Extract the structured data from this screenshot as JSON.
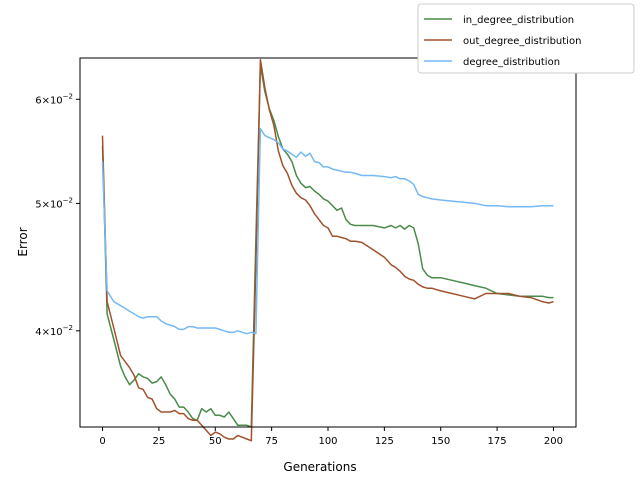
{
  "chart_data": {
    "type": "line",
    "xlabel": "Generations",
    "ylabel": "Error",
    "y_scale": "log",
    "xlim": [
      -10,
      210
    ],
    "ylim": [
      0.0338,
      0.0645
    ],
    "grid": false,
    "legend_placement": "upper-right (outside axes)",
    "x_ticks": [
      0,
      25,
      50,
      75,
      100,
      125,
      150,
      175,
      200
    ],
    "x_tick_labels": [
      "0",
      "25",
      "50",
      "75",
      "100",
      "125",
      "150",
      "175",
      "200"
    ],
    "y_ticks": [
      {
        "value": 0.04,
        "mant": "4",
        "exp": "−2"
      },
      {
        "value": 0.05,
        "mant": "5",
        "exp": "−2"
      },
      {
        "value": 0.06,
        "mant": "6",
        "exp": "−2"
      }
    ],
    "series": [
      {
        "name": "in_degree_distribution",
        "color": "#4a8a4a",
        "x": [
          0,
          2,
          5,
          8,
          10,
          12,
          14,
          16,
          18,
          20,
          22,
          24,
          26,
          28,
          30,
          32,
          34,
          36,
          38,
          40,
          42,
          44,
          46,
          48,
          50,
          52,
          54,
          56,
          58,
          60,
          62,
          64,
          66,
          68,
          70,
          72,
          74,
          76,
          78,
          80,
          82,
          84,
          86,
          88,
          90,
          92,
          94,
          96,
          98,
          100,
          102,
          104,
          106,
          108,
          110,
          112,
          115,
          120,
          125,
          128,
          130,
          132,
          134,
          136,
          138,
          140,
          142,
          144,
          146,
          150,
          155,
          160,
          165,
          170,
          175,
          180,
          185,
          190,
          195,
          198,
          200
        ],
        "values": [
          0.0553,
          0.0412,
          0.0394,
          0.0376,
          0.0369,
          0.0364,
          0.0367,
          0.0371,
          0.0369,
          0.0368,
          0.0365,
          0.0366,
          0.0369,
          0.0364,
          0.0358,
          0.0355,
          0.035,
          0.035,
          0.0347,
          0.0343,
          0.0342,
          0.0349,
          0.0347,
          0.0349,
          0.0345,
          0.0345,
          0.0344,
          0.0347,
          0.0343,
          0.0339,
          0.0339,
          0.0339,
          0.0338,
          0.047,
          0.0637,
          0.0608,
          0.059,
          0.0578,
          0.0562,
          0.055,
          0.0545,
          0.0538,
          0.0525,
          0.0518,
          0.0514,
          0.0515,
          0.0511,
          0.0508,
          0.0504,
          0.0502,
          0.0498,
          0.0494,
          0.0496,
          0.0486,
          0.0482,
          0.0481,
          0.0481,
          0.0481,
          0.0479,
          0.0481,
          0.0479,
          0.0481,
          0.0478,
          0.0481,
          0.0479,
          0.0466,
          0.0446,
          0.0441,
          0.0439,
          0.0439,
          0.0437,
          0.0435,
          0.0433,
          0.0431,
          0.0427,
          0.0426,
          0.0425,
          0.0425,
          0.0425,
          0.0424,
          0.0424
        ]
      },
      {
        "name": "out_degree_distribution",
        "color": "#a0522d",
        "x": [
          0,
          2,
          5,
          8,
          10,
          12,
          14,
          16,
          18,
          20,
          22,
          24,
          26,
          28,
          30,
          32,
          34,
          36,
          38,
          40,
          42,
          44,
          46,
          48,
          50,
          52,
          54,
          56,
          58,
          60,
          62,
          64,
          66,
          68,
          70,
          72,
          74,
          76,
          78,
          80,
          82,
          84,
          86,
          88,
          90,
          92,
          94,
          96,
          98,
          100,
          102,
          104,
          106,
          108,
          110,
          112,
          115,
          120,
          125,
          128,
          130,
          132,
          134,
          136,
          138,
          140,
          142,
          144,
          146,
          150,
          155,
          160,
          165,
          170,
          175,
          180,
          185,
          190,
          195,
          198,
          200
        ],
        "values": [
          0.0563,
          0.0421,
          0.0402,
          0.0383,
          0.0379,
          0.0375,
          0.037,
          0.0362,
          0.0361,
          0.0356,
          0.0355,
          0.0349,
          0.0347,
          0.0347,
          0.0347,
          0.0348,
          0.0346,
          0.0346,
          0.0343,
          0.0342,
          0.0342,
          0.0339,
          0.0336,
          0.0333,
          0.0335,
          0.0334,
          0.0332,
          0.0331,
          0.0331,
          0.0333,
          0.0332,
          0.0331,
          0.033,
          0.045,
          0.0643,
          0.0612,
          0.0589,
          0.0573,
          0.0548,
          0.0534,
          0.0527,
          0.0516,
          0.0509,
          0.0505,
          0.0503,
          0.0498,
          0.0491,
          0.0486,
          0.0481,
          0.0479,
          0.0472,
          0.0472,
          0.0471,
          0.047,
          0.0468,
          0.0468,
          0.0467,
          0.0461,
          0.0455,
          0.0449,
          0.0447,
          0.0444,
          0.044,
          0.0438,
          0.0437,
          0.0434,
          0.0432,
          0.0431,
          0.0431,
          0.0429,
          0.0427,
          0.0425,
          0.0423,
          0.0427,
          0.0427,
          0.0427,
          0.0425,
          0.0424,
          0.0421,
          0.042,
          0.0421
        ]
      },
      {
        "name": "degree_distribution",
        "color": "#74b9f5",
        "x": [
          0,
          2,
          5,
          8,
          10,
          12,
          14,
          16,
          18,
          20,
          22,
          24,
          26,
          28,
          30,
          32,
          34,
          36,
          38,
          40,
          42,
          44,
          46,
          48,
          50,
          52,
          54,
          56,
          58,
          60,
          62,
          64,
          66,
          68,
          70,
          72,
          74,
          76,
          78,
          80,
          82,
          84,
          86,
          88,
          90,
          92,
          94,
          96,
          98,
          100,
          102,
          104,
          106,
          108,
          110,
          112,
          115,
          120,
          125,
          128,
          130,
          132,
          134,
          136,
          138,
          140,
          142,
          144,
          146,
          150,
          155,
          160,
          165,
          170,
          175,
          180,
          185,
          190,
          195,
          198,
          200
        ],
        "values": [
          0.0538,
          0.0429,
          0.0421,
          0.0418,
          0.0416,
          0.0414,
          0.0412,
          0.041,
          0.0409,
          0.041,
          0.041,
          0.041,
          0.0407,
          0.0405,
          0.0404,
          0.0403,
          0.0401,
          0.0401,
          0.0403,
          0.0403,
          0.0402,
          0.0402,
          0.0402,
          0.0402,
          0.0402,
          0.0401,
          0.04,
          0.0399,
          0.0399,
          0.04,
          0.0399,
          0.0398,
          0.0399,
          0.0398,
          0.057,
          0.0563,
          0.0561,
          0.0559,
          0.0556,
          0.055,
          0.0548,
          0.0545,
          0.0542,
          0.0547,
          0.0543,
          0.0546,
          0.0538,
          0.0537,
          0.0533,
          0.0533,
          0.0531,
          0.053,
          0.0529,
          0.0528,
          0.0528,
          0.0527,
          0.0525,
          0.0525,
          0.0524,
          0.0523,
          0.0524,
          0.0522,
          0.0522,
          0.052,
          0.0517,
          0.0508,
          0.0506,
          0.0505,
          0.0504,
          0.0503,
          0.0502,
          0.0501,
          0.05,
          0.0498,
          0.0498,
          0.0497,
          0.0497,
          0.0497,
          0.0498,
          0.0498,
          0.0498
        ]
      }
    ]
  }
}
